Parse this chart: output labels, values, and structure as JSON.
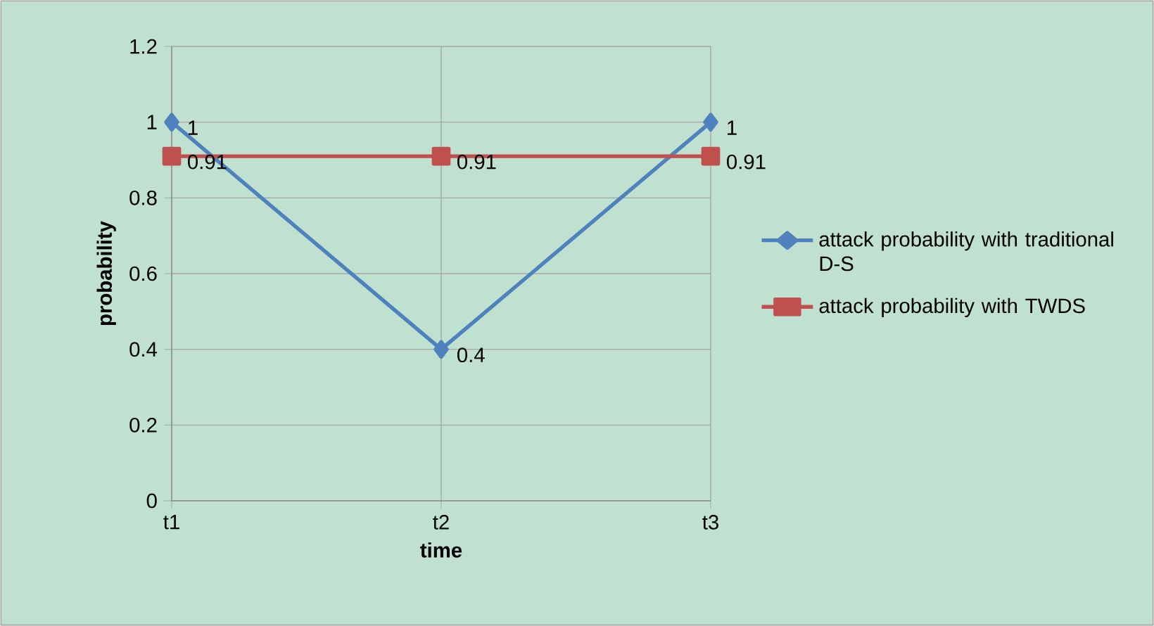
{
  "chart_data": {
    "type": "line",
    "xlabel": "time",
    "ylabel": "probability",
    "categories": [
      "t1",
      "t2",
      "t3"
    ],
    "series": [
      {
        "name": "attack probability with traditional D-S",
        "color": "#4f81bd",
        "values": [
          1,
          0.4,
          1
        ],
        "marker": "diamond"
      },
      {
        "name": "attack probability with TWDS",
        "color": "#c0504d",
        "values": [
          0.91,
          0.91,
          0.91
        ],
        "marker": "square"
      }
    ],
    "ylim": [
      0,
      1.2
    ],
    "yticks": [
      0,
      0.2,
      0.4,
      0.6,
      0.8,
      1,
      1.2
    ],
    "grid": true,
    "legend": "right",
    "data_labels": true
  }
}
